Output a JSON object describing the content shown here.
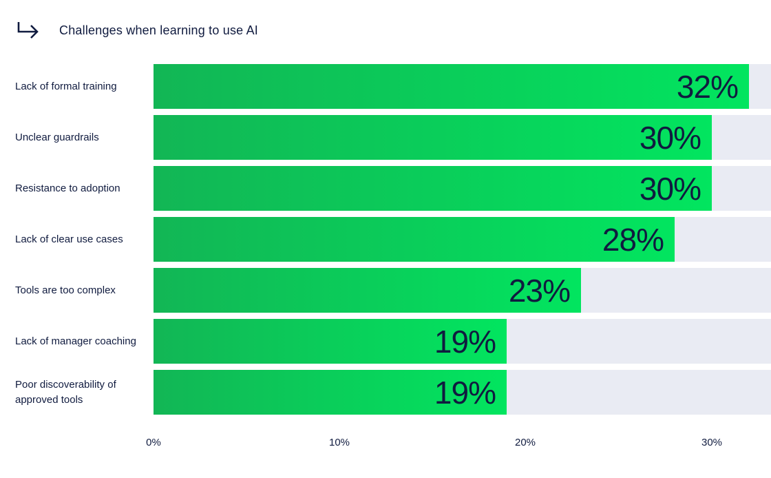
{
  "header": {
    "title": "Challenges when learning to use AI",
    "arrow_icon": "branch-right-arrow-icon"
  },
  "chart_data": {
    "type": "bar",
    "orientation": "horizontal",
    "title": "Challenges when learning to use AI",
    "categories": [
      "Lack of formal training",
      "Unclear guardrails",
      "Resistance to adoption",
      "Lack of clear use cases",
      "Tools are too complex",
      "Lack of manager coaching",
      "Poor discoverability of approved tools"
    ],
    "values": [
      32,
      30,
      30,
      28,
      23,
      19,
      19
    ],
    "value_labels": [
      "32%",
      "30%",
      "30%",
      "28%",
      "23%",
      "19%",
      "19%"
    ],
    "xlabel": "",
    "ylabel": "",
    "x_ticks": [
      "0%",
      "10%",
      "20%",
      "30%"
    ],
    "x_tick_values": [
      0,
      10,
      20,
      30
    ],
    "xlim": [
      0,
      33.2
    ],
    "grid": false,
    "legend": "none",
    "colors": {
      "bar_gradient_start": "#12b655",
      "bar_gradient_end": "#02e55f",
      "track": "#e9ebf3",
      "text": "#101b3f",
      "background": "#ffffff"
    }
  }
}
